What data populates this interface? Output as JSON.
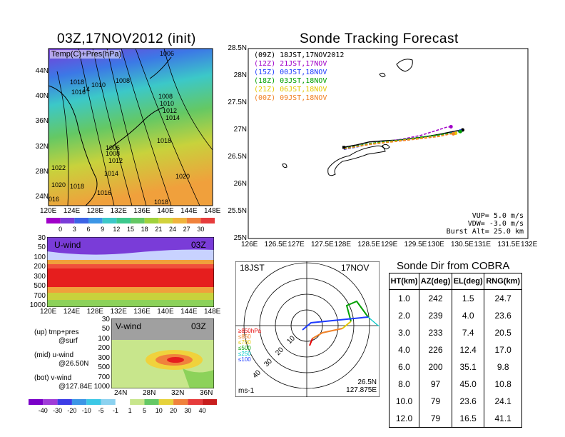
{
  "left_title": "03Z,17NOV2012 (init)",
  "right_title": "Sonde Tracking Forecast",
  "temp_panel": {
    "label": "Temp(C)+Pres(hPa)",
    "lat_ticks": [
      "44N",
      "40N",
      "36N",
      "32N",
      "28N",
      "24N"
    ],
    "lon_ticks": [
      "120E",
      "124E",
      "128E",
      "132E",
      "136E",
      "140E",
      "144E",
      "148E"
    ],
    "isobars": [
      "1006",
      "1018",
      "1010",
      "1008",
      "1016",
      "1014",
      "1008",
      "1010",
      "1012",
      "1014",
      "1006",
      "1008",
      "1012",
      "1018",
      "1022",
      "1014",
      "1020",
      "1020",
      "1018",
      "1016",
      "1018",
      "1016"
    ],
    "colorbar": [
      "0",
      "3",
      "6",
      "9",
      "12",
      "15",
      "18",
      "21",
      "24",
      "27",
      "30"
    ]
  },
  "u_panel": {
    "label": "U-wind",
    "time": "03Z",
    "p_ticks": [
      "30",
      "50",
      "100",
      "200",
      "300",
      "500",
      "700",
      "1000"
    ],
    "lon_ticks": [
      "120E",
      "124E",
      "128E",
      "132E",
      "136E",
      "140E",
      "144E",
      "148E"
    ]
  },
  "v_panel": {
    "label": "V-wind",
    "time": "03Z",
    "p_ticks": [
      "30",
      "50",
      "100",
      "200",
      "300",
      "500",
      "700",
      "1000"
    ],
    "lat_ticks": [
      "24N",
      "28N",
      "32N",
      "36N"
    ],
    "colorbar": [
      "-40",
      "-30",
      "-20",
      "-10",
      "-5",
      "-1",
      "1",
      "5",
      "10",
      "20",
      "30",
      "40"
    ]
  },
  "legend_notes": [
    {
      "a": "(up) tmp+pres",
      "b": "@surf"
    },
    {
      "a": "(mid) u-wind",
      "b": "@26.50N"
    },
    {
      "a": "(bot) v-wind",
      "b": "@127.84E"
    }
  ],
  "track_panel": {
    "y_ticks": [
      "28.5N",
      "28N",
      "27.5N",
      "27N",
      "26.5N",
      "26N",
      "25.5N",
      "25N"
    ],
    "x_ticks": [
      "126E",
      "126.5E",
      "127E",
      "127.5E",
      "128E",
      "128.5E",
      "129E",
      "129.5E",
      "130E",
      "130.5E",
      "131E",
      "131.5E",
      "132E"
    ],
    "legend": [
      {
        "text": "(09Z) 18JST,17NOV2012",
        "color": "#000000"
      },
      {
        "text": "(12Z) 21JST,17NOV",
        "color": "#a000c8"
      },
      {
        "text": "(15Z) 00JST,18NOV",
        "color": "#1e3cff"
      },
      {
        "text": "(18Z) 03JST,18NOV",
        "color": "#00a000"
      },
      {
        "text": "(21Z) 06JST,18NOV",
        "color": "#e6c800"
      },
      {
        "text": "(00Z) 09JST,18NOV",
        "color": "#f08228"
      }
    ],
    "params": [
      "VUP= 5.0 m/s",
      "VDW= -3.0 m/s",
      "Burst Alt= 25.0 km"
    ]
  },
  "polar_panel": {
    "time_label": "18JST",
    "date_label": "17NOV",
    "ring_labels": [
      "10",
      "20",
      "30",
      "40"
    ],
    "level_legend": [
      {
        "text": "≥850hPa",
        "color": "#e60000"
      },
      {
        "text": "≤850",
        "color": "#f08228"
      },
      {
        "text": "≤700",
        "color": "#e6c800"
      },
      {
        "text": "≤500",
        "color": "#00a000"
      },
      {
        "text": "≤250",
        "color": "#00c8c8"
      },
      {
        "text": "≤100",
        "color": "#1e3cff"
      }
    ],
    "unit": "ms-1",
    "loc_lat": "26.5N",
    "loc_lon": "127.875E"
  },
  "sonde_table": {
    "title": "Sonde Dir from COBRA",
    "headers": [
      "HT(km)",
      "AZ(deg)",
      "EL(deg)",
      "RNG(km)"
    ],
    "rows": [
      [
        "1.0",
        "242",
        "1.5",
        "24.7"
      ],
      [
        "2.0",
        "239",
        "4.0",
        "23.6"
      ],
      [
        "3.0",
        "233",
        "7.4",
        "20.5"
      ],
      [
        "4.0",
        "226",
        "12.4",
        "17.0"
      ],
      [
        "6.0",
        "200",
        "35.1",
        "9.8"
      ],
      [
        "8.0",
        "97",
        "45.0",
        "10.8"
      ],
      [
        "10.0",
        "79",
        "23.6",
        "24.1"
      ],
      [
        "12.0",
        "79",
        "16.5",
        "41.1"
      ]
    ]
  },
  "chart_data": [
    {
      "type": "heatmap",
      "title": "03Z,17NOV2012 (init)",
      "label": "Temp(C)+Pres(hPa)",
      "xlabel": "",
      "ylabel": "",
      "xlim": [
        "120E",
        "148E"
      ],
      "ylim": [
        "24N",
        "48N"
      ],
      "colorbar": [
        0,
        3,
        6,
        9,
        12,
        15,
        18,
        21,
        24,
        27,
        30
      ]
    },
    {
      "type": "heatmap",
      "label": "U-wind 03Z",
      "xlim": [
        "120E",
        "148E"
      ],
      "ylim": [
        1000,
        30
      ]
    },
    {
      "type": "heatmap",
      "label": "V-wind 03Z",
      "xlim": [
        "24N",
        "38N"
      ],
      "ylim": [
        1000,
        30
      ],
      "colorbar": [
        -40,
        -30,
        -20,
        -10,
        -5,
        -1,
        1,
        5,
        10,
        20,
        30,
        40
      ]
    },
    {
      "type": "line",
      "title": "Sonde Tracking Forecast",
      "xlim": [
        126,
        132
      ],
      "ylim": [
        25,
        28.5
      ],
      "series": [
        {
          "name": "(09Z) 18JST,17NOV2012",
          "color": "#000000",
          "x": [
            128.05,
            128.3,
            128.6,
            128.9,
            129.3,
            129.7,
            130.1,
            130.45,
            130.6
          ],
          "y": [
            26.68,
            26.72,
            26.78,
            26.8,
            26.82,
            26.86,
            26.92,
            26.98,
            27.0
          ]
        },
        {
          "name": "(12Z) 21JST,17NOV",
          "color": "#a000c8",
          "x": [
            128.05,
            128.3,
            128.6,
            128.9,
            129.3,
            129.7,
            130.0,
            130.25,
            130.35
          ],
          "y": [
            26.66,
            26.7,
            26.75,
            26.78,
            26.83,
            26.9,
            26.98,
            27.05,
            27.06
          ]
        },
        {
          "name": "(15Z) 00JST,18NOV",
          "color": "#1e3cff",
          "x": [
            128.05,
            128.3,
            128.6,
            128.9,
            129.3,
            129.7,
            130.1,
            130.4,
            130.55
          ],
          "y": [
            26.64,
            26.68,
            26.74,
            26.78,
            26.82,
            26.86,
            26.9,
            26.96,
            26.98
          ]
        },
        {
          "name": "(18Z) 03JST,18NOV",
          "color": "#00a000",
          "x": [
            128.05,
            128.3,
            128.6,
            128.9,
            129.3,
            129.7,
            130.1,
            130.4,
            130.55
          ],
          "y": [
            26.66,
            26.7,
            26.75,
            26.78,
            26.82,
            26.87,
            26.91,
            26.95,
            26.97
          ]
        },
        {
          "name": "(21Z) 06JST,18NOV",
          "color": "#e6c800",
          "x": [
            128.05,
            128.3,
            128.6,
            128.9,
            129.3,
            129.7,
            130.1,
            130.35,
            130.45
          ],
          "y": [
            26.65,
            26.69,
            26.74,
            26.77,
            26.81,
            26.85,
            26.89,
            26.93,
            26.94
          ]
        },
        {
          "name": "(00Z) 09JST,18NOV",
          "color": "#f08228",
          "x": [
            128.05,
            128.3,
            128.6,
            128.9,
            129.3,
            129.7,
            130.1,
            130.3,
            130.4
          ],
          "y": [
            26.65,
            26.69,
            26.73,
            26.76,
            26.8,
            26.84,
            26.88,
            26.92,
            26.93
          ]
        }
      ]
    },
    {
      "type": "table",
      "title": "Sonde Dir from COBRA",
      "columns": [
        "HT(km)",
        "AZ(deg)",
        "EL(deg)",
        "RNG(km)"
      ],
      "rows": [
        [
          1.0,
          242,
          1.5,
          24.7
        ],
        [
          2.0,
          239,
          4.0,
          23.6
        ],
        [
          3.0,
          233,
          7.4,
          20.5
        ],
        [
          4.0,
          226,
          12.4,
          17.0
        ],
        [
          6.0,
          200,
          35.1,
          9.8
        ],
        [
          8.0,
          97,
          45.0,
          10.8
        ],
        [
          10.0,
          79,
          23.6,
          24.1
        ],
        [
          12.0,
          79,
          16.5,
          41.1
        ]
      ]
    }
  ]
}
